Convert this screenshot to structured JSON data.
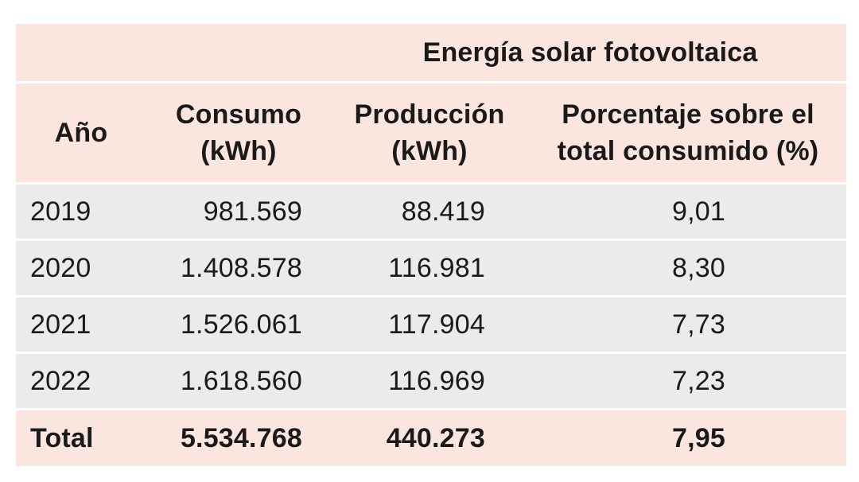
{
  "table": {
    "group_header": "Energía solar fotovoltaica",
    "columns": {
      "year": "Año",
      "consumption_line1": "Consumo",
      "consumption_line2": "(kWh)",
      "production_line1": "Producción",
      "production_line2": "(kWh)",
      "percentage_line1": "Porcentaje sobre el",
      "percentage_line2": "total consumido (%)"
    },
    "rows": [
      {
        "year": "2019",
        "consumption": "981.569",
        "production": "88.419",
        "percentage": "9,01"
      },
      {
        "year": "2020",
        "consumption": "1.408.578",
        "production": "116.981",
        "percentage": "8,30"
      },
      {
        "year": "2021",
        "consumption": "1.526.061",
        "production": "117.904",
        "percentage": "7,73"
      },
      {
        "year": "2022",
        "consumption": "1.618.560",
        "production": "116.969",
        "percentage": "7,23"
      }
    ],
    "total": {
      "label": "Total",
      "consumption": "5.534.768",
      "production": "440.273",
      "percentage": "7,95"
    }
  },
  "colors": {
    "header_background": "#fbe6df",
    "row_background": "#ebebeb",
    "text": "#1a1a1a"
  }
}
